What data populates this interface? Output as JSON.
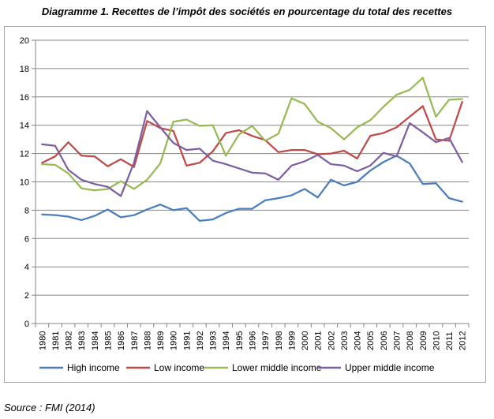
{
  "title": "Diagramme 1. Recettes de l’impôt des sociétés en pourcentage du total des recettes",
  "source": "Source : FMI (2014)",
  "chart_data": {
    "type": "line",
    "title": "Diagramme 1. Recettes de l’impôt des sociétés en pourcentage du total des recettes",
    "xlabel": "",
    "ylabel": "",
    "ylim": [
      0,
      20
    ],
    "yticks": [
      0,
      2,
      4,
      6,
      8,
      10,
      12,
      14,
      16,
      18,
      20
    ],
    "grid": true,
    "legend": "bottom",
    "x": [
      "1980",
      "1981",
      "1982",
      "1983",
      "1984",
      "1985",
      "1986",
      "1987",
      "1988",
      "1989",
      "1990",
      "1991",
      "1992",
      "1993",
      "1994",
      "1995",
      "1996",
      "1997",
      "1998",
      "1999",
      "2000",
      "2001",
      "2002",
      "2003",
      "2004",
      "2005",
      "2006",
      "2007",
      "2008",
      "2009",
      "2010",
      "2011",
      "2012"
    ],
    "series": [
      {
        "name": "High income",
        "color": "#4a7ebb",
        "values": [
          7.7,
          7.65,
          7.55,
          7.3,
          7.6,
          8.05,
          7.5,
          7.65,
          8.05,
          8.4,
          8.0,
          8.15,
          7.25,
          7.35,
          7.8,
          8.1,
          8.1,
          8.7,
          8.85,
          9.05,
          9.5,
          8.9,
          10.15,
          9.75,
          10.0,
          10.8,
          11.4,
          11.85,
          11.3,
          9.85,
          9.9,
          8.85,
          8.6
        ]
      },
      {
        "name": "Low income",
        "color": "#be4b48",
        "values": [
          11.35,
          11.8,
          12.8,
          11.85,
          11.8,
          11.1,
          11.6,
          11.05,
          14.3,
          13.8,
          13.6,
          11.15,
          11.35,
          12.15,
          13.45,
          13.65,
          13.25,
          12.95,
          12.1,
          12.25,
          12.25,
          11.95,
          12.0,
          12.2,
          11.65,
          13.25,
          13.45,
          13.85,
          14.6,
          15.35,
          13.0,
          12.9,
          15.65
        ]
      },
      {
        "name": "Lower middle income",
        "color": "#98b954",
        "values": [
          11.25,
          11.2,
          10.6,
          9.55,
          9.4,
          9.5,
          10.05,
          9.5,
          10.15,
          11.3,
          14.25,
          14.4,
          13.95,
          14.0,
          11.85,
          13.35,
          13.95,
          12.9,
          13.4,
          15.9,
          15.5,
          14.25,
          13.8,
          13.0,
          13.85,
          14.35,
          15.3,
          16.15,
          16.5,
          17.35,
          14.6,
          15.8,
          15.85
        ]
      },
      {
        "name": "Upper middle income",
        "color": "#7d60a0",
        "values": [
          12.65,
          12.55,
          10.85,
          10.15,
          9.85,
          9.65,
          9.0,
          11.35,
          15.0,
          13.85,
          12.75,
          12.25,
          12.35,
          11.5,
          11.25,
          10.95,
          10.65,
          10.6,
          10.15,
          11.15,
          11.45,
          11.9,
          11.25,
          11.15,
          10.75,
          11.15,
          12.05,
          11.8,
          14.15,
          13.5,
          12.8,
          13.1,
          11.4
        ]
      }
    ]
  }
}
